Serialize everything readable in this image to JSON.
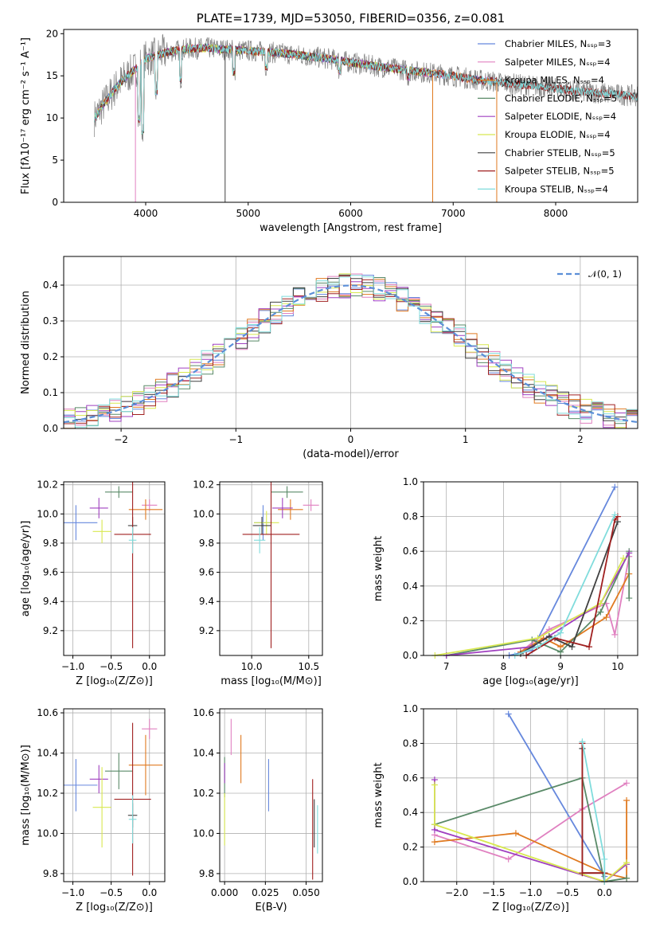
{
  "chart_data": [
    {
      "type": "line",
      "title": "PLATE=1739, MJD=53050, FIBERID=0356, z=0.081",
      "xlabel": "wavelength [Angstrom, rest frame]",
      "ylabel": "Flux [fλ10⁻¹⁷ erg cm⁻² s⁻¹ A⁻¹]",
      "xlim": [
        3200,
        8800
      ],
      "ylim": [
        0,
        20.5
      ],
      "xticks": [
        "4000",
        "5000",
        "6000",
        "7000",
        "8000"
      ],
      "yticks": [
        "0",
        "5",
        "10",
        "15",
        "20"
      ],
      "legend": "right",
      "data_color": "#808080",
      "data_envelope": {
        "x": [
          3500,
          3600,
          3700,
          3800,
          3900,
          4000,
          4200,
          4400,
          4600,
          4800,
          5000,
          5200,
          5400,
          5600,
          5800,
          6000,
          6200,
          6400,
          6600,
          6800,
          7000,
          7200,
          7400,
          7600,
          7800,
          8000,
          8200,
          8400,
          8600,
          8800
        ],
        "y": [
          10.0,
          11.8,
          13.5,
          14.8,
          15.8,
          17.0,
          17.8,
          18.2,
          18.3,
          18.1,
          18.0,
          17.8,
          17.6,
          17.3,
          17.0,
          16.6,
          16.2,
          15.9,
          15.6,
          15.3,
          15.0,
          14.6,
          14.3,
          14.0,
          13.8,
          13.5,
          13.2,
          13.0,
          12.8,
          12.6
        ]
      },
      "series": [
        {
          "name": "Chabrier MILES, Nₛₛₚ=3",
          "color": "#6688dd",
          "xmax": 7400
        },
        {
          "name": "Salpeter MILES, Nₛₛₚ=4",
          "color": "#e080c0",
          "xmax": 7400
        },
        {
          "name": "Kroupa MILES, Nₛₛₚ=4",
          "color": "#e07a20",
          "xmax": 7400
        },
        {
          "name": "Chabrier ELODIE, Nₛₛₚ=5",
          "color": "#5a8a68",
          "xmax": 6800
        },
        {
          "name": "Salpeter ELODIE, Nₛₛₚ=4",
          "color": "#a040c0",
          "xmax": 6800
        },
        {
          "name": "Kroupa ELODIE, Nₛₛₚ=4",
          "color": "#d8e850",
          "xmax": 6800
        },
        {
          "name": "Chabrier STELIB, Nₛₛₚ=5",
          "color": "#404040",
          "xmax": 8800
        },
        {
          "name": "Salpeter STELIB, Nₛₛₚ=5",
          "color": "#a02020",
          "xmax": 8800
        },
        {
          "name": "Kroupa STELIB, Nₛₛₚ=4",
          "color": "#80dcdc",
          "xmax": 8800
        }
      ]
    },
    {
      "type": "histogram",
      "xlabel": "(data-model)/error",
      "ylabel": "Normed distribution",
      "xlim": [
        -2.5,
        2.5
      ],
      "ylim": [
        0,
        0.48
      ],
      "xticks": [
        "−2",
        "−1",
        "0",
        "1",
        "2"
      ],
      "yticks": [
        "0.0",
        "0.1",
        "0.2",
        "0.3",
        "0.4"
      ],
      "legend": "top-right",
      "reference_curve": {
        "name": "𝒩(0, 1)",
        "mu": 0,
        "sigma": 1,
        "color": "#5b8fd8"
      }
    },
    {
      "type": "scatter",
      "xlabel": "Z [log₁₀(Z/Z⊙)]",
      "ylabel": "age  [log₁₀(age/yr)]",
      "xlim": [
        -1.12,
        0.2
      ],
      "ylim": [
        9.03,
        10.22
      ],
      "xticks": [
        "−1.0",
        "−0.5",
        "0.0"
      ],
      "yticks": [
        "9.2",
        "9.4",
        "9.6",
        "9.8",
        "10.0",
        "10.2"
      ],
      "points": [
        {
          "x": -0.96,
          "y": 9.94,
          "xerr": 0.28,
          "yerr": 0.12
        },
        {
          "x": 0.0,
          "y": 10.06,
          "xerr": 0.1,
          "yerr": 0.04
        },
        {
          "x": -0.05,
          "y": 10.03,
          "xerr": 0.22,
          "yerr": 0.07
        },
        {
          "x": -0.4,
          "y": 10.15,
          "xerr": 0.18,
          "yerr": 0.04
        },
        {
          "x": -0.66,
          "y": 10.04,
          "xerr": 0.12,
          "yerr": 0.07
        },
        {
          "x": -0.62,
          "y": 9.88,
          "xerr": 0.12,
          "yerr": 0.08
        },
        {
          "x": -0.22,
          "y": 9.92,
          "xerr": 0.06,
          "yerr": 0.06
        },
        {
          "x": -0.22,
          "y": 9.86,
          "xerr": 0.24,
          "yerr": 0.78
        },
        {
          "x": -0.22,
          "y": 9.82,
          "xerr": 0.05,
          "yerr": 0.09
        }
      ]
    },
    {
      "type": "scatter",
      "xlabel": "mass [log₁₀(M/M⊙)]",
      "xlim": [
        9.72,
        10.62
      ],
      "ylim": [
        9.03,
        10.22
      ],
      "xticks": [
        "10.0",
        "10.5"
      ],
      "yticks": [
        "9.2",
        "9.4",
        "9.6",
        "9.8",
        "10.0",
        "10.2"
      ],
      "points": [
        {
          "x": 10.1,
          "y": 9.94,
          "xerr": 0.08,
          "yerr": 0.12
        },
        {
          "x": 10.52,
          "y": 10.06,
          "xerr": 0.07,
          "yerr": 0.04
        },
        {
          "x": 10.34,
          "y": 10.03,
          "xerr": 0.11,
          "yerr": 0.07
        },
        {
          "x": 10.31,
          "y": 10.15,
          "xerr": 0.14,
          "yerr": 0.04
        },
        {
          "x": 10.27,
          "y": 10.04,
          "xerr": 0.09,
          "yerr": 0.07
        },
        {
          "x": 10.13,
          "y": 9.94,
          "xerr": 0.11,
          "yerr": 0.08
        },
        {
          "x": 10.09,
          "y": 9.92,
          "xerr": 0.08,
          "yerr": 0.06
        },
        {
          "x": 10.17,
          "y": 9.86,
          "xerr": 0.25,
          "yerr": 0.78
        },
        {
          "x": 10.07,
          "y": 9.82,
          "xerr": 0.05,
          "yerr": 0.09
        }
      ]
    },
    {
      "type": "line",
      "xlabel": "age  [log₁₀(age/yr)]",
      "ylabel": "mass weight",
      "xlim": [
        6.6,
        10.35
      ],
      "ylim": [
        0,
        1.0
      ],
      "xticks": [
        "7",
        "8",
        "9",
        "10"
      ],
      "yticks": [
        "0.0",
        "0.2",
        "0.4",
        "0.6",
        "0.8",
        "1.0"
      ],
      "series": [
        {
          "x": [
            8.1,
            8.5,
            9.95
          ],
          "y": [
            0.0,
            0.03,
            0.97
          ]
        },
        {
          "x": [
            8.3,
            8.8,
            9.8,
            9.95,
            10.2
          ],
          "y": [
            0.02,
            0.15,
            0.3,
            0.12,
            0.57
          ]
        },
        {
          "x": [
            8.3,
            8.7,
            9.0,
            9.8,
            10.2
          ],
          "y": [
            0.02,
            0.1,
            0.05,
            0.22,
            0.47
          ]
        },
        {
          "x": [
            7.0,
            8.5,
            9.0,
            9.7,
            10.2,
            10.2
          ],
          "y": [
            0.0,
            0.09,
            0.02,
            0.25,
            0.6,
            0.33
          ]
        },
        {
          "x": [
            7.0,
            8.5,
            9.7,
            10.2
          ],
          "y": [
            0.0,
            0.05,
            0.3,
            0.59
          ]
        },
        {
          "x": [
            6.8,
            8.6,
            9.7,
            10.1
          ],
          "y": [
            0.0,
            0.1,
            0.3,
            0.56
          ]
        },
        {
          "x": [
            8.3,
            8.8,
            9.2,
            10.0
          ],
          "y": [
            0.01,
            0.11,
            0.05,
            0.77
          ]
        },
        {
          "x": [
            8.4,
            8.9,
            9.5,
            9.95,
            10.0
          ],
          "y": [
            0.0,
            0.1,
            0.05,
            0.78,
            0.8
          ]
        },
        {
          "x": [
            8.2,
            8.6,
            9.0,
            9.95
          ],
          "y": [
            0.0,
            0.05,
            0.13,
            0.81
          ]
        }
      ]
    },
    {
      "type": "scatter",
      "xlabel": "Z [log₁₀(Z/Z⊙)]",
      "ylabel": "mass [log₁₀(M/M⊙)]",
      "xlim": [
        -1.12,
        0.2
      ],
      "ylim": [
        9.76,
        10.62
      ],
      "xticks": [
        "−1.0",
        "−0.5",
        "0.0"
      ],
      "yticks": [
        "9.8",
        "10.0",
        "10.2",
        "10.4",
        "10.6"
      ],
      "points": [
        {
          "x": -0.96,
          "y": 10.24,
          "xerr": 0.28,
          "yerr": 0.13
        },
        {
          "x": 0.0,
          "y": 10.52,
          "xerr": 0.1,
          "yerr": 0.05
        },
        {
          "x": -0.05,
          "y": 10.34,
          "xerr": 0.22,
          "yerr": 0.15
        },
        {
          "x": -0.4,
          "y": 10.31,
          "xerr": 0.18,
          "yerr": 0.09
        },
        {
          "x": -0.66,
          "y": 10.27,
          "xerr": 0.12,
          "yerr": 0.07
        },
        {
          "x": -0.62,
          "y": 10.13,
          "xerr": 0.12,
          "yerr": 0.2
        },
        {
          "x": -0.22,
          "y": 10.09,
          "xerr": 0.06,
          "yerr": 0.06
        },
        {
          "x": -0.22,
          "y": 10.17,
          "xerr": 0.24,
          "yerr": 0.38
        },
        {
          "x": -0.22,
          "y": 10.07,
          "xerr": 0.05,
          "yerr": 0.12
        }
      ]
    },
    {
      "type": "scatter",
      "xlabel": "E(B-V)",
      "xlim": [
        -0.003,
        0.06
      ],
      "ylim": [
        9.76,
        10.62
      ],
      "xticks": [
        "0.000",
        "0.025",
        "0.050"
      ],
      "yticks": [
        "9.8",
        "10.0",
        "10.2",
        "10.4",
        "10.6"
      ],
      "points": [
        {
          "x": 0.027,
          "y": 10.24,
          "yerr": 0.13
        },
        {
          "x": 0.004,
          "y": 10.48,
          "yerr": 0.09
        },
        {
          "x": 0.01,
          "y": 10.37,
          "yerr": 0.12
        },
        {
          "x": 0.0,
          "y": 10.28,
          "yerr": 0.1
        },
        {
          "x": 0.0,
          "y": 10.3,
          "yerr": 0.05
        },
        {
          "x": 0.0,
          "y": 10.07,
          "yerr": 0.13
        },
        {
          "x": 0.055,
          "y": 10.05,
          "yerr": 0.12
        },
        {
          "x": 0.054,
          "y": 10.02,
          "yerr": 0.25
        },
        {
          "x": 0.057,
          "y": 10.02,
          "yerr": 0.12
        }
      ]
    },
    {
      "type": "line",
      "xlabel": "Z [log₁₀(Z/Z⊙)]",
      "ylabel": "mass weight",
      "xlim": [
        -2.45,
        0.45
      ],
      "ylim": [
        0,
        1.0
      ],
      "xticks": [
        "−2.0",
        "−1.5",
        "−1.0",
        "−0.5",
        "0.0"
      ],
      "yticks": [
        "0.0",
        "0.2",
        "0.4",
        "0.6",
        "0.8",
        "1.0"
      ],
      "series": [
        {
          "x": [
            -1.3,
            0.0,
            0.0
          ],
          "y": [
            0.97,
            0.03,
            0.0
          ]
        },
        {
          "x": [
            -2.3,
            -1.3,
            -0.3,
            0.3
          ],
          "y": [
            0.27,
            0.13,
            0.42,
            0.57
          ]
        },
        {
          "x": [
            -2.3,
            -1.2,
            0.0,
            0.3,
            0.3
          ],
          "y": [
            0.23,
            0.28,
            0.05,
            0.02,
            0.47
          ]
        },
        {
          "x": [
            -2.3,
            -0.3,
            0.0,
            0.3
          ],
          "y": [
            0.33,
            0.6,
            0.0,
            0.02
          ]
        },
        {
          "x": [
            -2.3,
            -2.3,
            0.0,
            0.3
          ],
          "y": [
            0.59,
            0.3,
            0.0,
            0.1
          ]
        },
        {
          "x": [
            -2.3,
            -2.3,
            0.0,
            0.3
          ],
          "y": [
            0.56,
            0.33,
            0.0,
            0.11
          ]
        },
        {
          "x": [
            -0.3,
            -0.3,
            0.0
          ],
          "y": [
            0.77,
            0.05,
            0.05
          ]
        },
        {
          "x": [
            -0.3,
            -0.3,
            0.0,
            0.0
          ],
          "y": [
            0.8,
            0.05,
            0.05,
            0.0
          ]
        },
        {
          "x": [
            -0.3,
            0.0,
            0.0
          ],
          "y": [
            0.81,
            0.13,
            0.0
          ]
        }
      ]
    }
  ]
}
